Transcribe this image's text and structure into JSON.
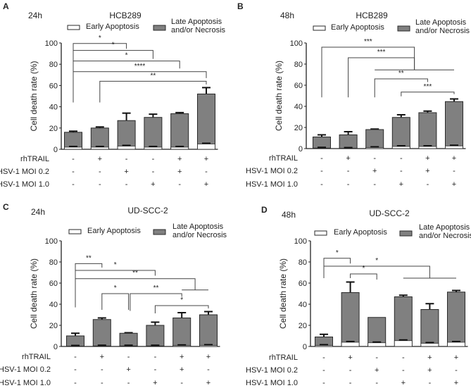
{
  "chart_data": [
    {
      "type": "bar",
      "panel": "A",
      "time": "24h",
      "title": "HCB289",
      "ylabel": "Cell death rate (%)",
      "ylim": [
        0,
        100
      ],
      "yticks": [
        "0",
        "20",
        "40",
        "60",
        "80",
        "100"
      ],
      "legend": [
        "Early Apoptosis",
        "Late Apoptosis",
        "and/or Necrosis"
      ],
      "conditions": [
        {
          "name": "rhTRAIL",
          "values": [
            "-",
            "+",
            "-",
            "-",
            "+",
            "+"
          ]
        },
        {
          "name": "HSV-1 MOI 0.2",
          "values": [
            "-",
            "-",
            "+",
            "-",
            "+",
            "-"
          ]
        },
        {
          "name": "HSV-1 MOI 1.0",
          "values": [
            "-",
            "-",
            "-",
            "+",
            "-",
            "+"
          ]
        }
      ],
      "total": [
        16,
        20,
        27,
        30,
        33.5,
        52
      ],
      "total_err": [
        1,
        1,
        7,
        3,
        1,
        6
      ],
      "early": [
        2,
        2,
        3,
        2,
        2,
        5
      ],
      "brackets": [
        {
          "from": 0,
          "to": 2,
          "y": 99.5,
          "from_y": 44,
          "to_y": 94.5,
          "label": "*"
        },
        {
          "from": 0,
          "to": 3,
          "y": 93,
          "from_y": 44,
          "to_y": 85,
          "label": "*"
        },
        {
          "from": 0,
          "to": 4,
          "y": 83,
          "from_y": 44,
          "to_y": 76,
          "label": "*"
        },
        {
          "from": 0,
          "to": 5,
          "y": 73,
          "from_y": 44,
          "to_y": 67,
          "label": "****"
        },
        {
          "from": 1,
          "to": 5,
          "y": 64,
          "from_y": 44,
          "to_y": 61,
          "label": "**"
        }
      ],
      "group_lines": []
    },
    {
      "type": "bar",
      "panel": "B",
      "time": "48h",
      "title": "HCB289",
      "ylabel": "Cell death rate (%)",
      "ylim": [
        0,
        100
      ],
      "yticks": [
        "0",
        "20",
        "40",
        "60",
        "80",
        "100"
      ],
      "legend": [
        "Early Apoptosis",
        "Late Apoptosis",
        "and/or Necrosis"
      ],
      "conditions": [
        {
          "name": "rhTRAIL",
          "values": [
            "-",
            "+",
            "-",
            "-",
            "+",
            "+"
          ]
        },
        {
          "name": "HSV-1 MOI 0.2",
          "values": [
            "-",
            "-",
            "+",
            "-",
            "+",
            "-"
          ]
        },
        {
          "name": "HSV-1 MOI 1.0",
          "values": [
            "-",
            "-",
            "-",
            "+",
            "-",
            "+"
          ]
        }
      ],
      "total": [
        11,
        13,
        18,
        29.5,
        34,
        44.5
      ],
      "total_err": [
        2,
        3,
        0.5,
        2.5,
        1.5,
        2.5
      ],
      "early": [
        0.5,
        0.3,
        1,
        2,
        2,
        2.5
      ],
      "brackets": [
        {
          "from": 0,
          "to": 3.5,
          "y": 96,
          "from_y": 48.5,
          "to_y": 74.5,
          "label": "***"
        },
        {
          "from": 1,
          "to": 3.5,
          "y": 86,
          "from_y": 48.5,
          "to_y": 74.5,
          "label": "***"
        },
        {
          "from": 2,
          "to": 4,
          "y": 66,
          "from_y": 48.5,
          "to_y": 63,
          "label": "**"
        },
        {
          "from": 3,
          "to": 5,
          "y": 53.5,
          "from_y": 49.5,
          "to_y": 51.5,
          "label": "***"
        }
      ],
      "group_lines": [
        {
          "from": 2,
          "to": 5,
          "y": 74.5
        }
      ]
    },
    {
      "type": "bar",
      "panel": "C",
      "time": "24h",
      "title": "UD-SCC-2",
      "ylabel": "Cell death rate (%)",
      "ylim": [
        0,
        100
      ],
      "yticks": [
        "0",
        "20",
        "40",
        "60",
        "80",
        "100"
      ],
      "legend": [
        "Early Apoptosis",
        "Late Apoptosis",
        "and/or Necrosis"
      ],
      "conditions": [
        {
          "name": "rhTRAIL",
          "values": [
            "-",
            "+",
            "-",
            "-",
            "+",
            "+"
          ]
        },
        {
          "name": "HSV-1 MOI 0.2",
          "values": [
            "-",
            "-",
            "+",
            "-",
            "+",
            "-"
          ]
        },
        {
          "name": "HSV-1 MOI 1.0",
          "values": [
            "-",
            "-",
            "-",
            "+",
            "-",
            "+"
          ]
        }
      ],
      "total": [
        10,
        25.5,
        12.5,
        20,
        27,
        30
      ],
      "total_err": [
        2.5,
        1.5,
        0.5,
        3,
        5,
        3
      ],
      "early": [
        0.3,
        0.5,
        0.5,
        0.5,
        0.8,
        1
      ],
      "brackets": [
        {
          "from": 0,
          "to": 1,
          "y": 78.4,
          "from_y": 37,
          "to_y": 74.7,
          "label": "**"
        },
        {
          "from": 0,
          "to": 3,
          "y": 72,
          "from_y": 37,
          "to_y": 67,
          "label": "*"
        },
        {
          "from": 0,
          "to": 4.5,
          "y": 64.2,
          "from_y": 37,
          "to_y": 53.5,
          "label": "**"
        },
        {
          "from": 1,
          "to": 2,
          "y": 50,
          "from_y": 34.7,
          "to_y": 34.7,
          "label": "*"
        },
        {
          "from": 2.06,
          "to": 4,
          "y": 50,
          "from_y": 33.7,
          "to_y": 47,
          "label": "**"
        },
        {
          "from": 3,
          "to": 5,
          "y": 38.7,
          "from_y": 31.3,
          "to_y": 36,
          "label": "*"
        }
      ],
      "group_lines": [
        {
          "from": 4,
          "to": 5,
          "y": 53.5
        }
      ]
    },
    {
      "type": "bar",
      "panel": "D",
      "time": "48h",
      "title": "UD-SCC-2",
      "ylabel": "Cell death rate (%)",
      "ylim": [
        0,
        100
      ],
      "yticks": [
        "0",
        "20",
        "40",
        "60",
        "80",
        "100"
      ],
      "legend": [
        "Early Apoptosis",
        "Late Apoptosis",
        "and/or Necrosis"
      ],
      "conditions": [
        {
          "name": "rhTRAIL",
          "values": [
            "-",
            "+",
            "-",
            "-",
            "+",
            "+"
          ]
        },
        {
          "name": "HSV-1 MOI 0.2",
          "values": [
            "-",
            "-",
            "+",
            "-",
            "+",
            "-"
          ]
        },
        {
          "name": "HSV-1 MOI 1.0",
          "values": [
            "-",
            "-",
            "-",
            "+",
            "-",
            "+"
          ]
        }
      ],
      "total": [
        9,
        51,
        27.5,
        47,
        35,
        51.5
      ],
      "total_err": [
        2.5,
        10,
        0,
        1.5,
        5.5,
        1.5
      ],
      "early": [
        1,
        4,
        3.5,
        5.5,
        3,
        4
      ],
      "brackets": [
        {
          "from": 0,
          "to": 1,
          "y": 83.5,
          "from_y": 64.7,
          "to_y": 78.5,
          "label": "*"
        },
        {
          "from": 0,
          "to": 4,
          "y": 76,
          "from_y": 64.7,
          "to_y": 64.7,
          "label": "*"
        },
        {
          "from": 1,
          "to": 2,
          "y": 68.7,
          "from_y": 64.7,
          "to_y": 63.3,
          "label": "*"
        }
      ],
      "group_lines": [
        {
          "from": 3,
          "to": 5,
          "y": 64.7
        }
      ]
    }
  ],
  "colors": {
    "late": "#808080",
    "early": "#ffffff",
    "outline": "#2a2a2a",
    "bracket": "#444444"
  }
}
